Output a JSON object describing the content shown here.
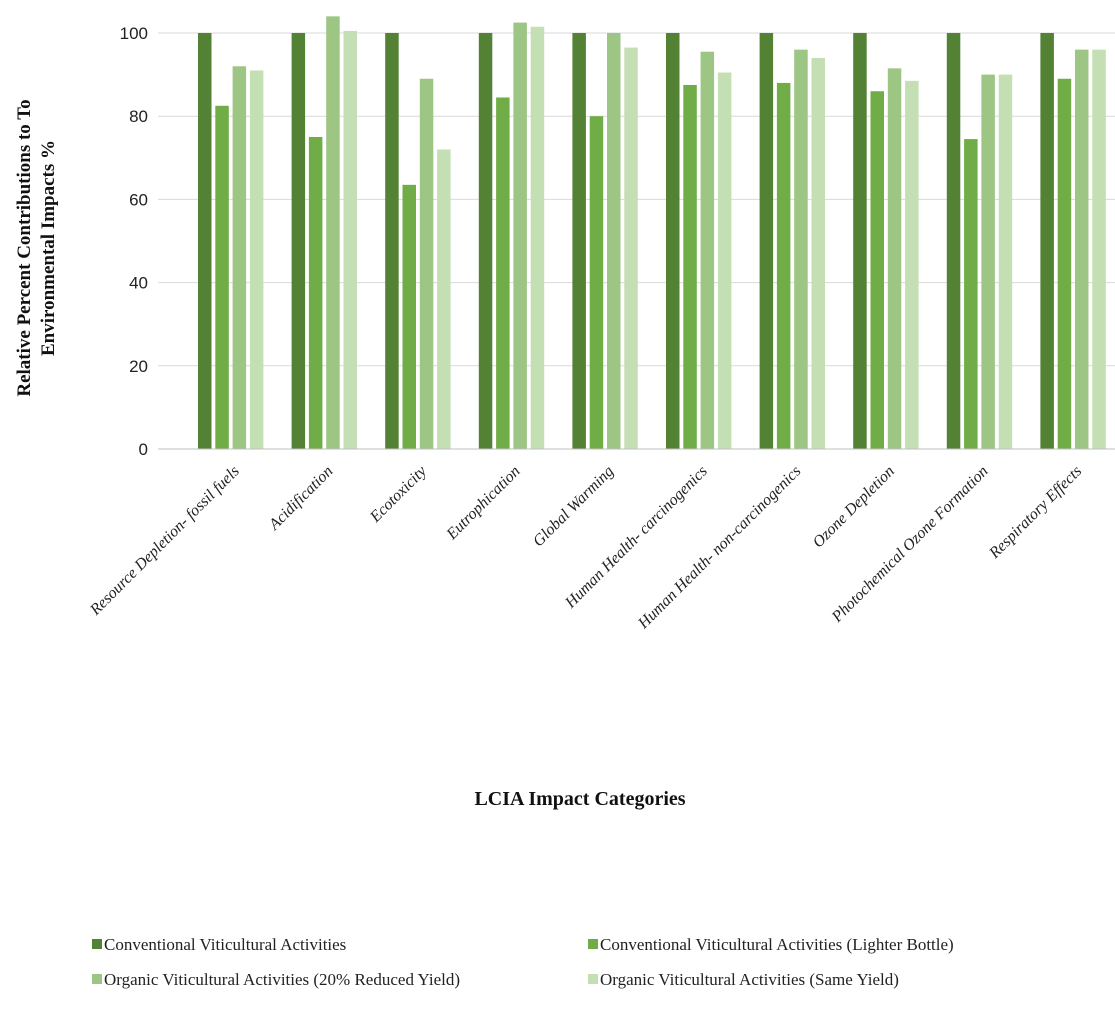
{
  "chart_data": {
    "type": "bar",
    "title": "",
    "ylabel_lines": [
      "Relative Percent Contributions to To",
      "Environmental Impacts %"
    ],
    "xlabel": "LCIA Impact Categories",
    "ylim": [
      0,
      100
    ],
    "yticks": [
      0,
      20,
      40,
      60,
      80,
      100
    ],
    "grid": true,
    "legend_position": "bottom",
    "categories": [
      "Resource Depletion- fossil fuels",
      "Acidification",
      "Ecotoxicity",
      "Eutrophication",
      "Global Warming",
      "Human Health- carcinogenics",
      "Human Health- non-carcinogenics",
      "Ozone Depletion",
      "Photochemical Ozone Formation",
      "Respiratory Effects"
    ],
    "series": [
      {
        "name": "Conventional Viticultural Activities",
        "color": "#548235",
        "values": [
          100,
          100,
          100,
          100,
          100,
          100,
          100,
          100,
          100,
          100
        ]
      },
      {
        "name": "Conventional Viticultural Activities (Lighter Bottle)",
        "color": "#70ad47",
        "values": [
          82.5,
          75,
          63.5,
          84.5,
          80,
          87.5,
          88,
          86,
          74.5,
          89
        ]
      },
      {
        "name": "Organic Viticultural Activities (20% Reduced Yield)",
        "color": "#9dc583",
        "values": [
          92,
          104,
          89,
          102.5,
          100,
          95.5,
          96,
          91.5,
          90,
          96
        ]
      },
      {
        "name": "Organic Viticultural Activities (Same Yield)",
        "color": "#c5dfb4",
        "values": [
          91,
          100.5,
          72,
          101.5,
          96.5,
          90.5,
          94,
          88.5,
          90,
          96
        ]
      }
    ]
  }
}
